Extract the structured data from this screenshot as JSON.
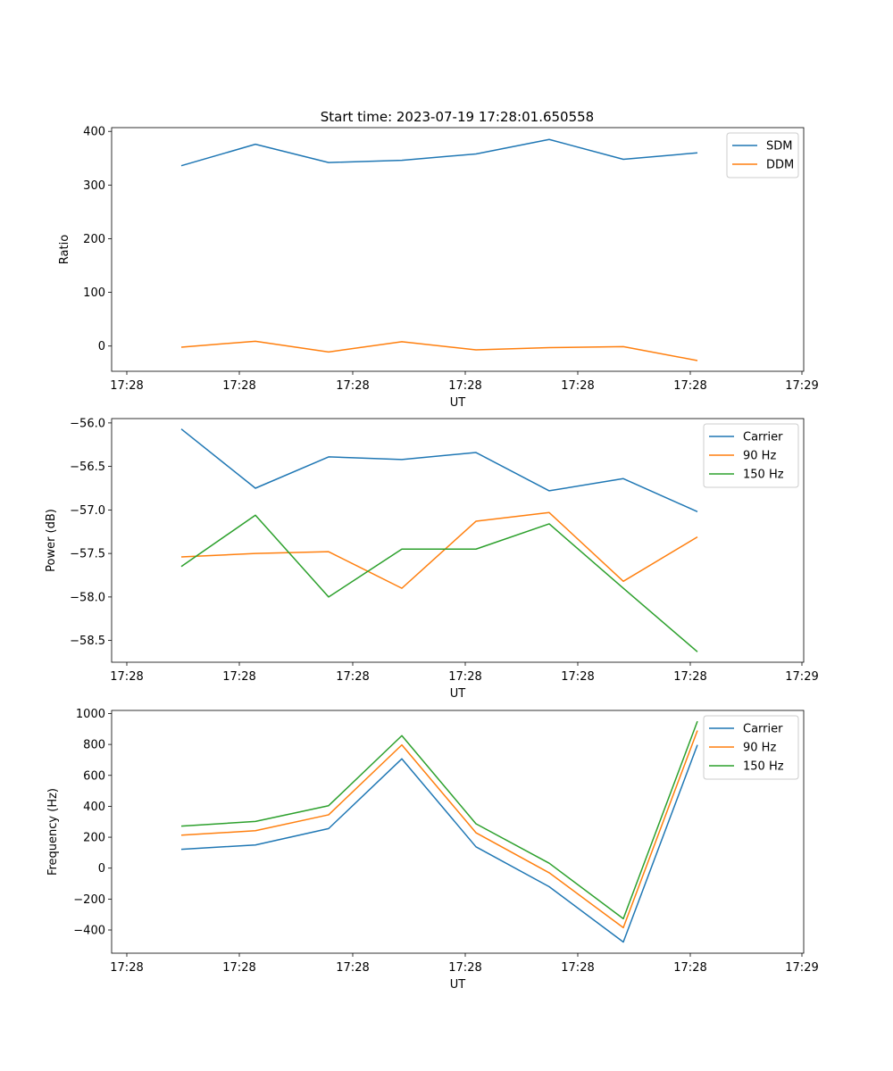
{
  "chart_data": [
    {
      "type": "line",
      "title": "Start time: 2023-07-19 17:28:01.650558",
      "xlabel": "UT",
      "ylabel": "Ratio",
      "xtick_labels": [
        "17:28",
        "17:28",
        "17:28",
        "17:28",
        "17:28",
        "17:28",
        "17:29"
      ],
      "ylim": [
        -47,
        407
      ],
      "yticks": [
        0,
        100,
        200,
        300,
        400
      ],
      "ytick_labels": [
        "0",
        "100",
        "200",
        "300",
        "400"
      ],
      "legend_position": "top-right",
      "series": [
        {
          "name": "SDM",
          "color": "#1f77b4",
          "values": [
            336,
            376,
            342,
            346,
            358,
            385,
            348,
            360
          ]
        },
        {
          "name": "DDM",
          "color": "#ff7f0e",
          "values": [
            -2,
            9,
            -11,
            8,
            -7,
            -3,
            -1,
            -27
          ]
        }
      ]
    },
    {
      "type": "line",
      "title": "",
      "xlabel": "UT",
      "ylabel": "Power (dB)",
      "xtick_labels": [
        "17:28",
        "17:28",
        "17:28",
        "17:28",
        "17:28",
        "17:28",
        "17:29"
      ],
      "ylim": [
        -58.75,
        -55.95
      ],
      "yticks": [
        -56.0,
        -56.5,
        -57.0,
        -57.5,
        -58.0,
        -58.5
      ],
      "ytick_labels": [
        "−56.0",
        "−56.5",
        "−57.0",
        "−57.5",
        "−58.0",
        "−58.5"
      ],
      "legend_position": "top-right",
      "series": [
        {
          "name": "Carrier",
          "color": "#1f77b4",
          "values": [
            -56.07,
            -56.75,
            -56.39,
            -56.42,
            -56.34,
            -56.78,
            -56.64,
            -57.02
          ]
        },
        {
          "name": "90 Hz",
          "color": "#ff7f0e",
          "values": [
            -57.54,
            -57.5,
            -57.48,
            -57.9,
            -57.13,
            -57.03,
            -57.82,
            -57.31
          ]
        },
        {
          "name": "150 Hz",
          "color": "#2ca02c",
          "values": [
            -57.65,
            -57.06,
            -58.0,
            -57.45,
            -57.45,
            -57.16,
            -57.9,
            -58.63
          ]
        }
      ]
    },
    {
      "type": "line",
      "title": "",
      "xlabel": "UT",
      "ylabel": "Frequency (Hz)",
      "xtick_labels": [
        "17:28",
        "17:28",
        "17:28",
        "17:28",
        "17:28",
        "17:28",
        "17:29"
      ],
      "ylim": [
        -550,
        1020
      ],
      "yticks": [
        -400,
        -200,
        0,
        200,
        400,
        600,
        800,
        1000
      ],
      "ytick_labels": [
        "−400",
        "−200",
        "0",
        "200",
        "400",
        "600",
        "800",
        "1000"
      ],
      "legend_position": "top-right",
      "series": [
        {
          "name": "Carrier",
          "color": "#1f77b4",
          "values": [
            122,
            150,
            256,
            707,
            138,
            -120,
            -478,
            797
          ]
        },
        {
          "name": "90 Hz",
          "color": "#ff7f0e",
          "values": [
            213,
            242,
            345,
            797,
            229,
            -30,
            -385,
            890
          ]
        },
        {
          "name": "150 Hz",
          "color": "#2ca02c",
          "values": [
            272,
            302,
            404,
            857,
            287,
            32,
            -327,
            950
          ]
        }
      ]
    }
  ]
}
